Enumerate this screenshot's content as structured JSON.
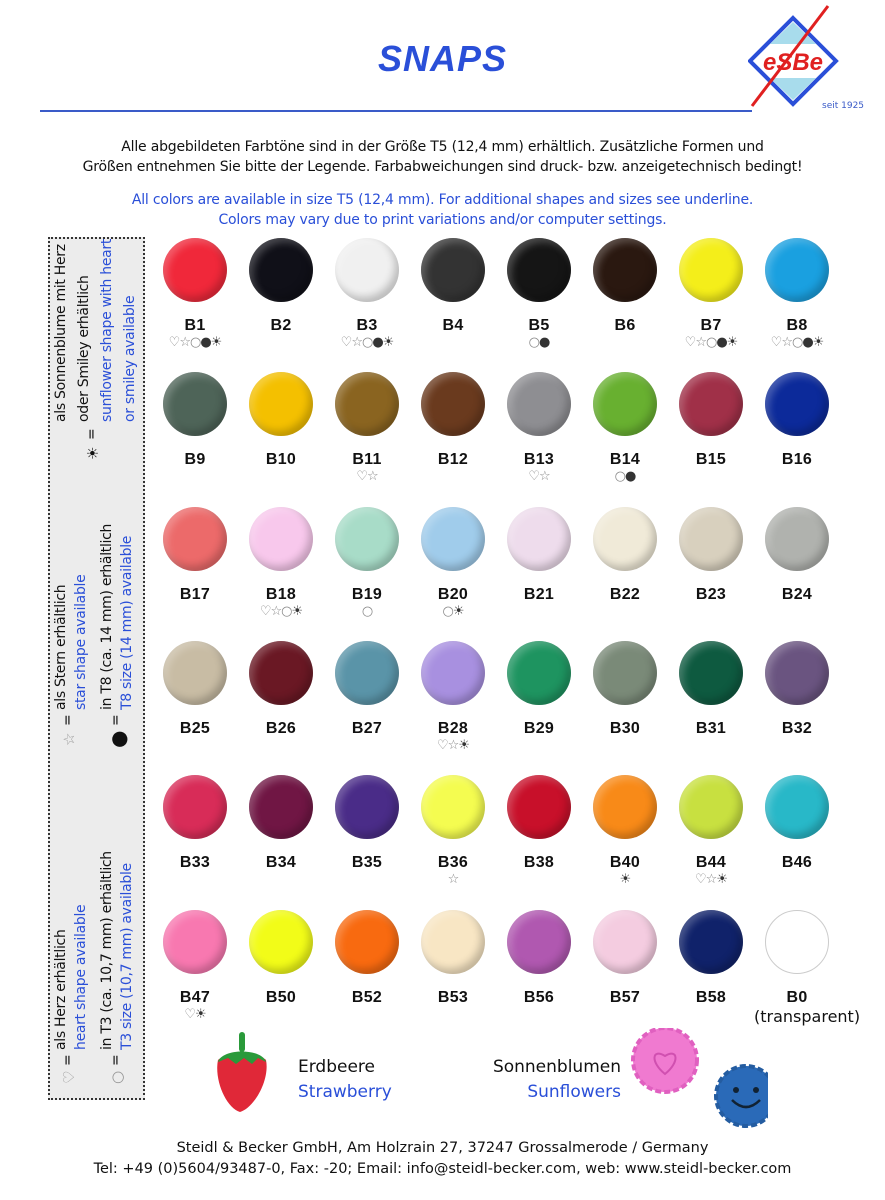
{
  "header": {
    "title": "SNAPS",
    "logo_text": "ESBE",
    "since": "seit 1925",
    "brand_color": "#2a4fd8"
  },
  "intro": {
    "de": [
      "Alle abgebildeten Farbtöne sind in der Größe T5 (12,4 mm) erhältlich. Zusätzliche Formen und",
      "Größen entnehmen Sie bitte der Legende. Farbabweichungen sind druck- bzw. anzeigetechnisch bedingt!"
    ],
    "en": [
      "All colors are available in size T5 (12,4 mm). For additional shapes and sizes see underline.",
      "Colors may vary due to print variations and/or computer settings."
    ]
  },
  "legend": {
    "heart": {
      "symbol": "♡",
      "de": "als Herz erhältlich",
      "en": "heart shape available"
    },
    "t3": {
      "symbol": "○",
      "de": "in T3 (ca. 10,7 mm) erhältlich",
      "en": "T3 size (10,7 mm) available"
    },
    "star": {
      "symbol": "☆",
      "de": "als Stern erhältlich",
      "en": "star shape available"
    },
    "t8": {
      "symbol": "●",
      "de": "in T8 (ca. 14 mm) erhältlich",
      "en": "T8 size (14 mm) available"
    },
    "sun": {
      "symbol": "☀",
      "de": [
        "als Sonnenblume mit Herz",
        "oder Smiley erhältlich"
      ],
      "en": [
        "sunflower shape with heart",
        "or smiley available"
      ]
    },
    "equals": "="
  },
  "icon_glyphs": {
    "h": "♡",
    "s": "☆",
    "c": "○",
    "d": "●",
    "u": "☀"
  },
  "colors": [
    {
      "code": "B1",
      "color": "#f0283a",
      "icons": "hscdu"
    },
    {
      "code": "B2",
      "color": "#101018",
      "icons": ""
    },
    {
      "code": "B3",
      "color": "#f0f0f0",
      "icons": "hscdu"
    },
    {
      "code": "B4",
      "color": "#333333",
      "icons": ""
    },
    {
      "code": "B5",
      "color": "#151515",
      "icons": "cd"
    },
    {
      "code": "B6",
      "color": "#2a1810",
      "icons": ""
    },
    {
      "code": "B7",
      "color": "#f4ee1a",
      "icons": "hscdu"
    },
    {
      "code": "B8",
      "color": "#1aa0e0",
      "icons": "hscdu"
    },
    {
      "code": "B9",
      "color": "#4e6458",
      "icons": ""
    },
    {
      "code": "B10",
      "color": "#f4c000",
      "icons": ""
    },
    {
      "code": "B11",
      "color": "#8a6420",
      "icons": "hs"
    },
    {
      "code": "B12",
      "color": "#6a3a1e",
      "icons": ""
    },
    {
      "code": "B13",
      "color": "#8e8e92",
      "icons": "hs"
    },
    {
      "code": "B14",
      "color": "#68b030",
      "icons": "cd"
    },
    {
      "code": "B15",
      "color": "#a03048",
      "icons": ""
    },
    {
      "code": "B16",
      "color": "#0c2a9a",
      "icons": ""
    },
    {
      "code": "B17",
      "color": "#ec6a6a",
      "icons": ""
    },
    {
      "code": "B18",
      "color": "#f8c8ec",
      "icons": "hscu"
    },
    {
      "code": "B19",
      "color": "#a8dcc8",
      "icons": "c"
    },
    {
      "code": "B20",
      "color": "#a0cceb",
      "icons": "cu"
    },
    {
      "code": "B21",
      "color": "#eedcec",
      "icons": ""
    },
    {
      "code": "B22",
      "color": "#f0ead8",
      "icons": ""
    },
    {
      "code": "B23",
      "color": "#d8d0be",
      "icons": ""
    },
    {
      "code": "B24",
      "color": "#b0b2ae",
      "icons": ""
    },
    {
      "code": "B25",
      "color": "#c8bca4",
      "icons": ""
    },
    {
      "code": "B26",
      "color": "#6a1824",
      "icons": ""
    },
    {
      "code": "B27",
      "color": "#5a94a8",
      "icons": ""
    },
    {
      "code": "B28",
      "color": "#a890e0",
      "icons": "hsu"
    },
    {
      "code": "B29",
      "color": "#1e9460",
      "icons": ""
    },
    {
      "code": "B30",
      "color": "#7a8a78",
      "icons": ""
    },
    {
      "code": "B31",
      "color": "#0e5a40",
      "icons": ""
    },
    {
      "code": "B32",
      "color": "#6a5480",
      "icons": ""
    },
    {
      "code": "B33",
      "color": "#d82c58",
      "icons": ""
    },
    {
      "code": "B34",
      "color": "#701644",
      "icons": ""
    },
    {
      "code": "B35",
      "color": "#4a2c88",
      "icons": ""
    },
    {
      "code": "B36",
      "color": "#f4fc50",
      "icons": "s"
    },
    {
      "code": "B38",
      "color": "#c8102a",
      "icons": ""
    },
    {
      "code": "B40",
      "color": "#f88a18",
      "icons": "u"
    },
    {
      "code": "B44",
      "color": "#c8e040",
      "icons": "hsu"
    },
    {
      "code": "B46",
      "color": "#28b8c8",
      "icons": ""
    },
    {
      "code": "B47",
      "color": "#f878b0",
      "icons": "hu"
    },
    {
      "code": "B50",
      "color": "#f2fc18",
      "icons": ""
    },
    {
      "code": "B52",
      "color": "#f86a10",
      "icons": ""
    },
    {
      "code": "B53",
      "color": "#f8e6c4",
      "icons": ""
    },
    {
      "code": "B56",
      "color": "#b058b0",
      "icons": ""
    },
    {
      "code": "B57",
      "color": "#f4cce0",
      "icons": ""
    },
    {
      "code": "B58",
      "color": "#10226a",
      "icons": ""
    },
    {
      "code": "B0",
      "color": "#ffffff",
      "icons": "",
      "note": "(transparent)"
    }
  ],
  "extras": {
    "strawberry": {
      "de": "Erdbeere",
      "en": "Strawberry"
    },
    "sunflowers": {
      "de": "Sonnenblumen",
      "en": "Sunflowers"
    }
  },
  "footer": {
    "line1": "Steidl & Becker GmbH, Am Holzrain 27, 37247 Grossalmerode / Germany",
    "line2": "Tel: +49 (0)5604/93487-0, Fax: -20; Email: info@steidl-becker.com, web: www.steidl-becker.com"
  }
}
